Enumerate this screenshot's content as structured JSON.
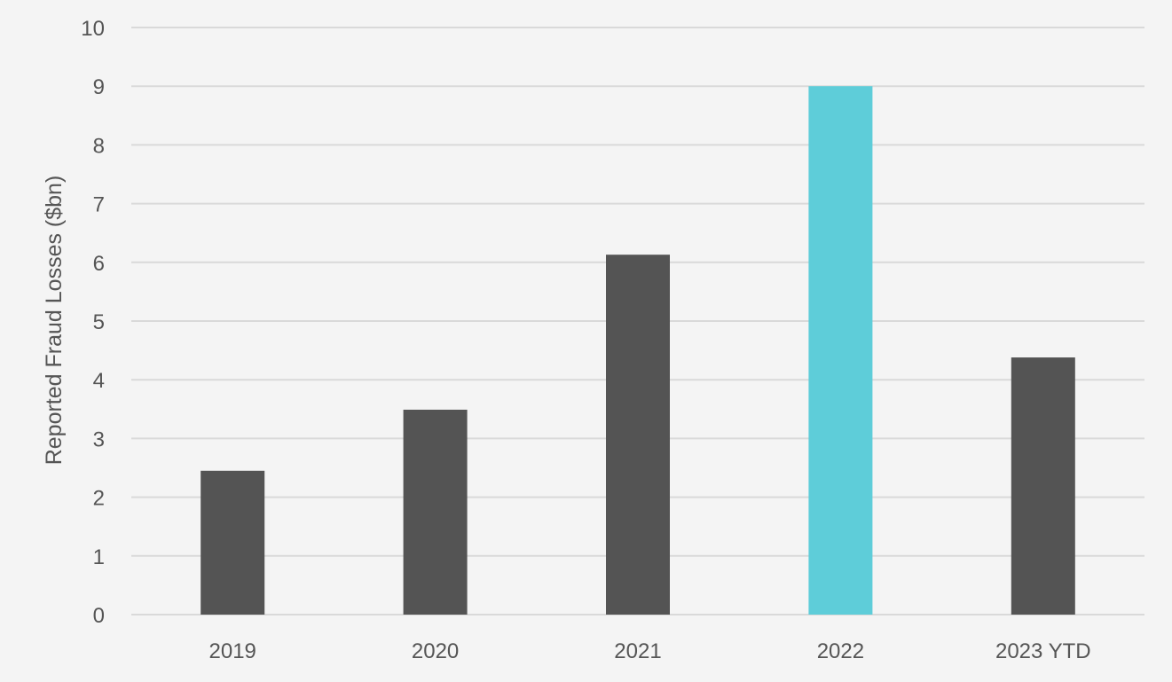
{
  "chart_data": {
    "type": "bar",
    "title": "",
    "xlabel": "",
    "ylabel": "Reported Fraud Losses ($bn)",
    "categories": [
      "2019",
      "2020",
      "2021",
      "2022",
      "2023 YTD"
    ],
    "values": [
      2.45,
      3.49,
      6.13,
      9.0,
      4.38
    ],
    "ylim": [
      0,
      10
    ],
    "yticks": [
      "0",
      "1",
      "2",
      "3",
      "4",
      "5",
      "6",
      "7",
      "8",
      "9",
      "10"
    ],
    "grid": true,
    "legend": "none",
    "colors": {
      "default_bar": "#545454",
      "highlight_bar": "#5ecdd9",
      "highlight_category": "2022",
      "gridline": "#d9d9d9",
      "background": "#f4f4f4",
      "text": "#555555"
    }
  }
}
